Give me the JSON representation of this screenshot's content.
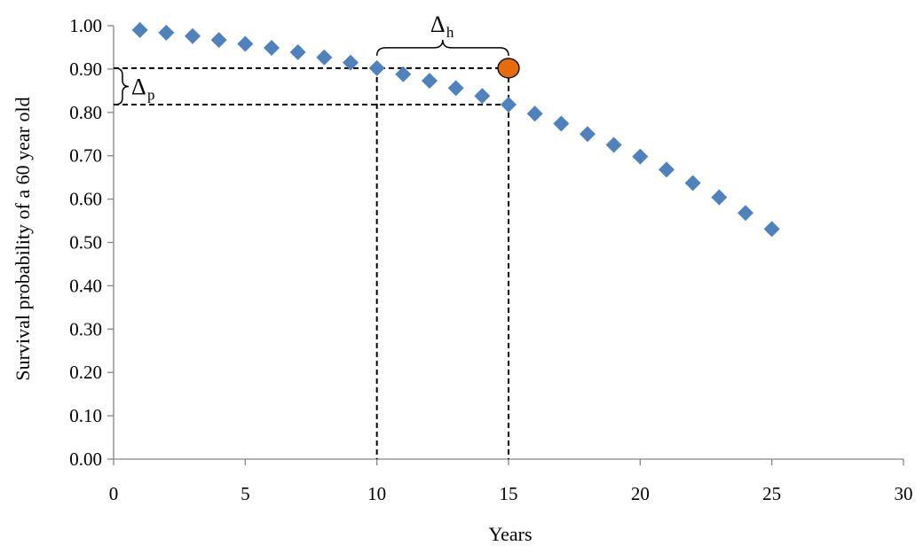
{
  "chart_data": {
    "type": "scatter",
    "title": "",
    "xlabel": "Years",
    "ylabel": "Survival probability of a 60 year old",
    "xlim": [
      0,
      30
    ],
    "ylim": [
      0,
      1.0
    ],
    "x_ticks": [
      0,
      5,
      10,
      15,
      20,
      25,
      30
    ],
    "x_tick_labels": [
      "0",
      "5",
      "10",
      "15",
      "20",
      "25",
      "30"
    ],
    "y_ticks": [
      0,
      0.1,
      0.2,
      0.3,
      0.4,
      0.5,
      0.6,
      0.7,
      0.8,
      0.9,
      1.0
    ],
    "y_tick_labels": [
      "0.00",
      "0.10",
      "0.20",
      "0.30",
      "0.40",
      "0.50",
      "0.60",
      "0.70",
      "0.80",
      "0.90",
      "1.00"
    ],
    "grid": false,
    "legend": "none",
    "series": [
      {
        "marker": "diamond",
        "color": "#4F81BD",
        "x": [
          1,
          2,
          3,
          4,
          5,
          6,
          7,
          8,
          9,
          10,
          11,
          12,
          13,
          14,
          15,
          16,
          17,
          18,
          19,
          20,
          21,
          22,
          23,
          24,
          25
        ],
        "y": [
          0.99,
          0.984,
          0.976,
          0.967,
          0.958,
          0.949,
          0.939,
          0.927,
          0.915,
          0.902,
          0.888,
          0.873,
          0.856,
          0.838,
          0.818,
          0.797,
          0.774,
          0.75,
          0.725,
          0.698,
          0.668,
          0.637,
          0.604,
          0.568,
          0.531
        ]
      }
    ],
    "highlight_point": {
      "x": 15,
      "y": 0.902,
      "marker": "circle",
      "color": "#E46C0A"
    },
    "annotations": {
      "delta_h": {
        "symbol": "Δ",
        "subscript": "h",
        "from_x": 10,
        "to_x": 15,
        "at_y": 0.902
      },
      "delta_p": {
        "symbol": "Δ",
        "subscript": "p",
        "from_y": 0.902,
        "to_y": 0.818
      }
    }
  }
}
